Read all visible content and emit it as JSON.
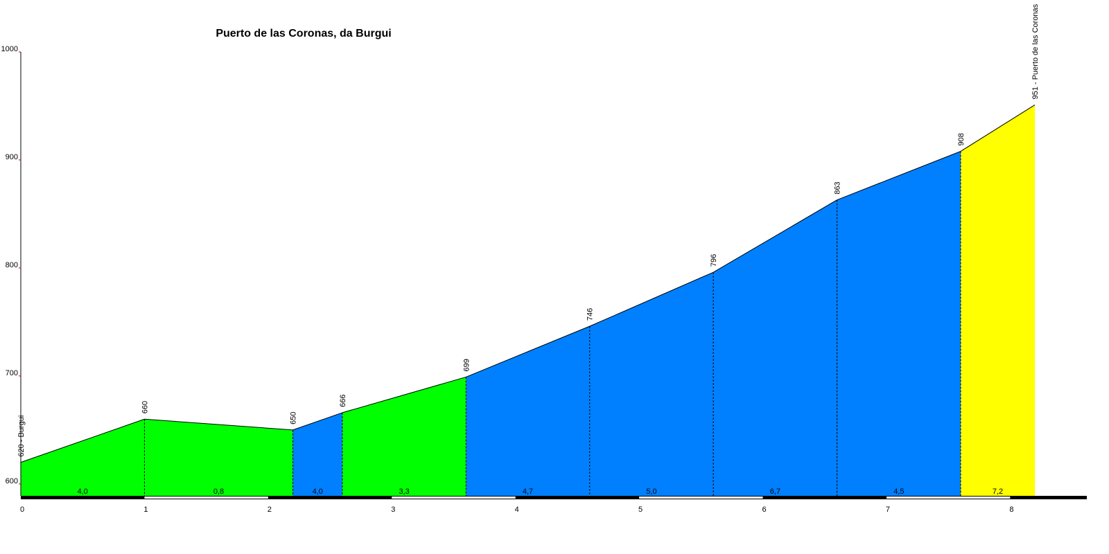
{
  "chart_data": {
    "type": "area",
    "title": "Puerto de las Coronas, da Burgui",
    "x": [
      0,
      1,
      2.2,
      2.6,
      3.6,
      4.6,
      5.6,
      6.6,
      7.6,
      8.2
    ],
    "values": [
      620,
      660,
      650,
      666,
      699,
      746,
      796,
      863,
      908,
      951
    ],
    "value_labels": [
      "620 - Burgui",
      "660",
      "650",
      "666",
      "699",
      "746",
      "796",
      "863",
      "908",
      "951 - Puerto de las Coronas"
    ],
    "gradients": [
      {
        "value": 4.0,
        "label": "4,0"
      },
      {
        "value": 0.8,
        "label": "0,8"
      },
      {
        "value": 4.0,
        "label": "4,0"
      },
      {
        "value": 3.3,
        "label": "3,3"
      },
      {
        "value": 4.7,
        "label": "4,7"
      },
      {
        "value": 5.0,
        "label": "5,0"
      },
      {
        "value": 6.7,
        "label": "6,7"
      },
      {
        "value": 4.5,
        "label": "4,5"
      },
      {
        "value": 7.2,
        "label": "7,2"
      }
    ],
    "segment_colors": [
      "#00ff00",
      "#00ff00",
      "#0080ff",
      "#00ff00",
      "#0080ff",
      "#0080ff",
      "#0080ff",
      "#0080ff",
      "#ffff00"
    ],
    "xlim": [
      0,
      8.62
    ],
    "xticks": [
      0,
      1,
      2,
      3,
      4,
      5,
      6,
      7,
      8
    ],
    "ylim": [
      589,
      1000
    ],
    "yticks": [
      600,
      700,
      800,
      900,
      1000
    ]
  }
}
